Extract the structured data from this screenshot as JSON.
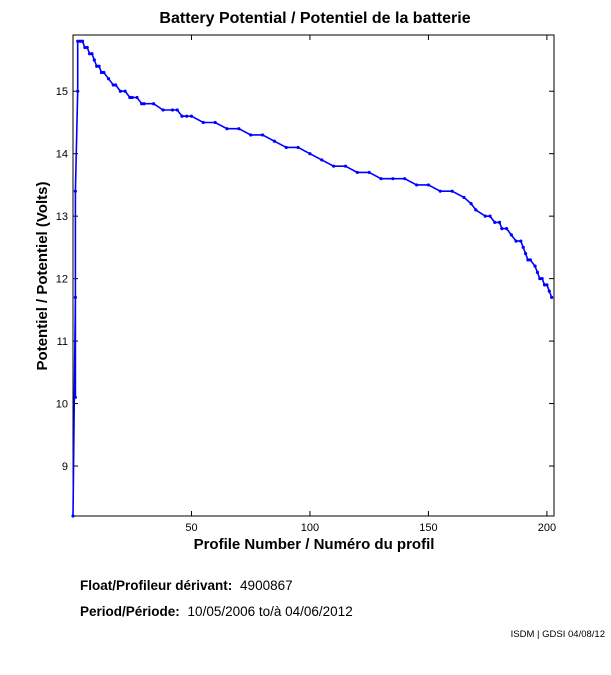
{
  "chart_data": {
    "type": "line",
    "title": "Battery Potential / Potentiel de la batterie",
    "xlabel": "Profile Number / Numéro du profil",
    "ylabel": "Potentiel / Potentiel (Volts)",
    "xlim": [
      0,
      203
    ],
    "ylim": [
      8.2,
      15.9
    ],
    "x_ticks": [
      50,
      100,
      150,
      200
    ],
    "y_ticks": [
      9,
      10,
      11,
      12,
      13,
      14,
      15
    ],
    "grid": false,
    "series_color": "#0000ff",
    "series": [
      {
        "x": [
          0,
          1,
          1,
          1,
          2,
          2,
          3,
          4,
          5,
          6,
          7,
          8,
          9,
          10,
          11,
          12,
          13,
          15,
          17,
          18,
          20,
          22,
          24,
          25,
          27,
          29,
          30,
          34,
          38,
          42,
          44,
          46,
          48,
          50,
          55,
          60,
          65,
          70,
          75,
          80,
          85,
          90,
          95,
          100,
          105,
          110,
          115,
          120,
          125,
          130,
          135,
          140,
          145,
          150,
          155,
          160,
          165,
          168,
          170,
          174,
          176,
          178,
          180,
          181,
          183,
          185,
          187,
          189,
          190,
          191,
          192,
          193,
          195,
          196,
          197,
          198,
          199,
          200,
          201,
          202
        ],
        "y": [
          8.2,
          11.7,
          10.1,
          13.4,
          15.0,
          15.8,
          15.8,
          15.8,
          15.7,
          15.7,
          15.6,
          15.6,
          15.5,
          15.4,
          15.4,
          15.3,
          15.3,
          15.2,
          15.1,
          15.1,
          15.0,
          15.0,
          14.9,
          14.9,
          14.9,
          14.8,
          14.8,
          14.8,
          14.7,
          14.7,
          14.7,
          14.6,
          14.6,
          14.6,
          14.5,
          14.5,
          14.4,
          14.4,
          14.3,
          14.3,
          14.2,
          14.1,
          14.1,
          14.0,
          13.9,
          13.8,
          13.8,
          13.7,
          13.7,
          13.6,
          13.6,
          13.6,
          13.5,
          13.5,
          13.4,
          13.4,
          13.3,
          13.2,
          13.1,
          13.0,
          13.0,
          12.9,
          12.9,
          12.8,
          12.8,
          12.7,
          12.6,
          12.6,
          12.5,
          12.4,
          12.3,
          12.3,
          12.2,
          12.1,
          12.0,
          12.0,
          11.9,
          11.9,
          11.8,
          11.7
        ]
      }
    ]
  },
  "info": {
    "float_label": "Float/Profileur dérivant:",
    "float_value": "4900867",
    "period_label": "Period/Période:",
    "period_value": "10/05/2006  to/à  04/06/2012"
  },
  "credit": "ISDM | GDSI 04/08/12"
}
